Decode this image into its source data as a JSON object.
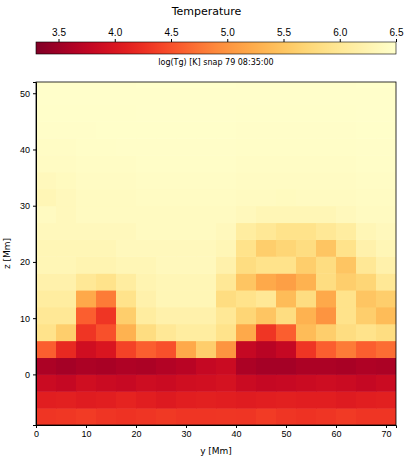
{
  "chart_data": {
    "type": "heatmap",
    "title": "Temperature",
    "x_label": "y [Mm]",
    "y_label": "z [Mm]",
    "xlim": [
      0,
      72
    ],
    "ylim": [
      -9,
      52
    ],
    "xticks": [
      0,
      10,
      20,
      30,
      40,
      50,
      60,
      70
    ],
    "yticks": [
      0,
      10,
      20,
      30,
      40,
      50
    ],
    "colorbar": {
      "label": "log(Tg) [K] snap 79 08:35:00",
      "range": [
        3.3,
        6.5
      ],
      "ticks": [
        3.5,
        {
          "value": 4,
          "label": "4.0"
        },
        4.5,
        {
          "value": 5,
          "label": "5.0"
        },
        5.5,
        {
          "value": 6,
          "label": "6.0"
        },
        6.5
      ]
    },
    "cells": {
      "x_edges": [
        0,
        4,
        8,
        12,
        16,
        20,
        24,
        28,
        32,
        36,
        40,
        44,
        48,
        52,
        56,
        60,
        64,
        68,
        72
      ],
      "y_edges": [
        -9,
        -6,
        -3,
        0,
        3,
        6,
        9,
        12,
        15,
        18,
        21,
        24,
        27,
        30,
        33,
        36,
        39,
        42,
        45,
        48,
        51,
        54
      ],
      "values": [
        [
          4.3,
          4.32,
          4.35,
          4.3,
          4.28,
          4.3,
          4.33,
          4.3,
          4.3,
          4.31,
          4.3,
          4.35,
          4.3,
          4.28,
          4.3,
          4.34,
          4.3,
          4.3
        ],
        [
          4.1,
          4.12,
          4.08,
          4.1,
          4.15,
          4.1,
          4.05,
          4.1,
          4.12,
          4.1,
          4.08,
          4.1,
          4.12,
          4.1,
          4.1,
          4.06,
          4.1,
          4.12
        ],
        [
          3.85,
          3.8,
          3.9,
          3.85,
          3.82,
          3.88,
          3.85,
          3.9,
          3.92,
          3.95,
          3.85,
          3.8,
          3.82,
          3.85,
          3.88,
          3.85,
          3.8,
          3.85
        ],
        [
          3.6,
          3.55,
          3.6,
          3.58,
          3.62,
          3.6,
          3.65,
          3.7,
          3.8,
          3.85,
          3.6,
          3.55,
          3.55,
          3.6,
          3.6,
          3.58,
          3.62,
          3.6
        ],
        [
          4.6,
          4.2,
          3.9,
          4.0,
          4.4,
          4.6,
          4.5,
          5.2,
          5.6,
          5.0,
          3.8,
          3.7,
          3.8,
          4.3,
          4.6,
          4.8,
          4.6,
          4.7
        ],
        [
          5.9,
          5.6,
          4.3,
          4.5,
          5.3,
          5.8,
          6.0,
          6.1,
          6.1,
          5.9,
          5.2,
          4.3,
          4.6,
          5.4,
          5.6,
          5.8,
          5.9,
          5.8
        ],
        [
          6.0,
          6.0,
          4.6,
          4.3,
          5.6,
          6.1,
          6.2,
          6.2,
          6.2,
          6.0,
          5.7,
          5.5,
          5.8,
          5.3,
          5.0,
          5.9,
          5.6,
          5.4
        ],
        [
          6.1,
          6.1,
          5.2,
          4.8,
          5.9,
          6.2,
          6.3,
          6.3,
          6.3,
          5.8,
          5.9,
          6.0,
          5.4,
          5.8,
          5.2,
          5.9,
          5.5,
          5.6
        ],
        [
          6.2,
          6.2,
          6.0,
          5.9,
          6.1,
          6.25,
          6.3,
          6.3,
          6.3,
          6.0,
          5.5,
          5.2,
          5.1,
          5.3,
          5.8,
          5.6,
          5.7,
          6.0
        ],
        [
          6.3,
          6.3,
          6.25,
          6.25,
          6.3,
          6.3,
          6.35,
          6.35,
          6.35,
          6.2,
          5.8,
          5.9,
          5.9,
          5.6,
          5.8,
          5.5,
          6.0,
          6.2
        ],
        [
          6.3,
          6.3,
          6.3,
          6.3,
          6.35,
          6.35,
          6.35,
          6.35,
          6.35,
          6.3,
          5.9,
          5.6,
          5.7,
          5.8,
          5.5,
          5.9,
          6.2,
          6.3
        ],
        [
          6.35,
          6.35,
          6.35,
          6.35,
          6.35,
          6.4,
          6.4,
          6.4,
          6.4,
          6.35,
          6.1,
          6.0,
          5.9,
          5.9,
          6.0,
          6.1,
          6.3,
          6.35
        ],
        [
          6.4,
          6.35,
          6.4,
          6.4,
          6.4,
          6.4,
          6.4,
          6.4,
          6.4,
          6.4,
          6.35,
          6.3,
          6.3,
          6.3,
          6.3,
          6.35,
          6.4,
          6.4
        ],
        [
          6.3,
          6.35,
          6.4,
          6.4,
          6.4,
          6.42,
          6.42,
          6.42,
          6.42,
          6.42,
          6.4,
          6.4,
          6.38,
          6.4,
          6.4,
          6.4,
          6.42,
          6.42
        ],
        [
          6.35,
          6.38,
          6.42,
          6.42,
          6.42,
          6.44,
          6.44,
          6.44,
          6.44,
          6.44,
          6.42,
          6.42,
          6.42,
          6.42,
          6.42,
          6.42,
          6.44,
          6.44
        ],
        [
          6.42,
          6.42,
          6.44,
          6.44,
          6.44,
          6.45,
          6.45,
          6.45,
          6.45,
          6.45,
          6.44,
          6.44,
          6.44,
          6.44,
          6.44,
          6.44,
          6.45,
          6.45
        ],
        [
          6.44,
          6.44,
          6.45,
          6.45,
          6.46,
          6.46,
          6.46,
          6.46,
          6.46,
          6.46,
          6.45,
          6.45,
          6.45,
          6.45,
          6.45,
          6.45,
          6.46,
          6.46
        ],
        [
          6.46,
          6.46,
          6.46,
          6.47,
          6.47,
          6.47,
          6.47,
          6.47,
          6.47,
          6.47,
          6.46,
          6.46,
          6.46,
          6.46,
          6.46,
          6.46,
          6.47,
          6.47
        ],
        [
          6.47,
          6.47,
          6.47,
          6.47,
          6.47,
          6.48,
          6.48,
          6.48,
          6.48,
          6.48,
          6.47,
          6.47,
          6.47,
          6.47,
          6.47,
          6.47,
          6.48,
          6.48
        ],
        [
          6.48,
          6.48,
          6.48,
          6.48,
          6.48,
          6.48,
          6.48,
          6.48,
          6.48,
          6.48,
          6.48,
          6.48,
          6.48,
          6.48,
          6.48,
          6.48,
          6.48,
          6.48
        ],
        [
          6.48,
          6.48,
          6.48,
          6.48,
          6.48,
          6.49,
          6.49,
          6.49,
          6.49,
          6.49,
          6.48,
          6.48,
          6.48,
          6.48,
          6.48,
          6.48,
          6.49,
          6.49
        ]
      ]
    }
  }
}
